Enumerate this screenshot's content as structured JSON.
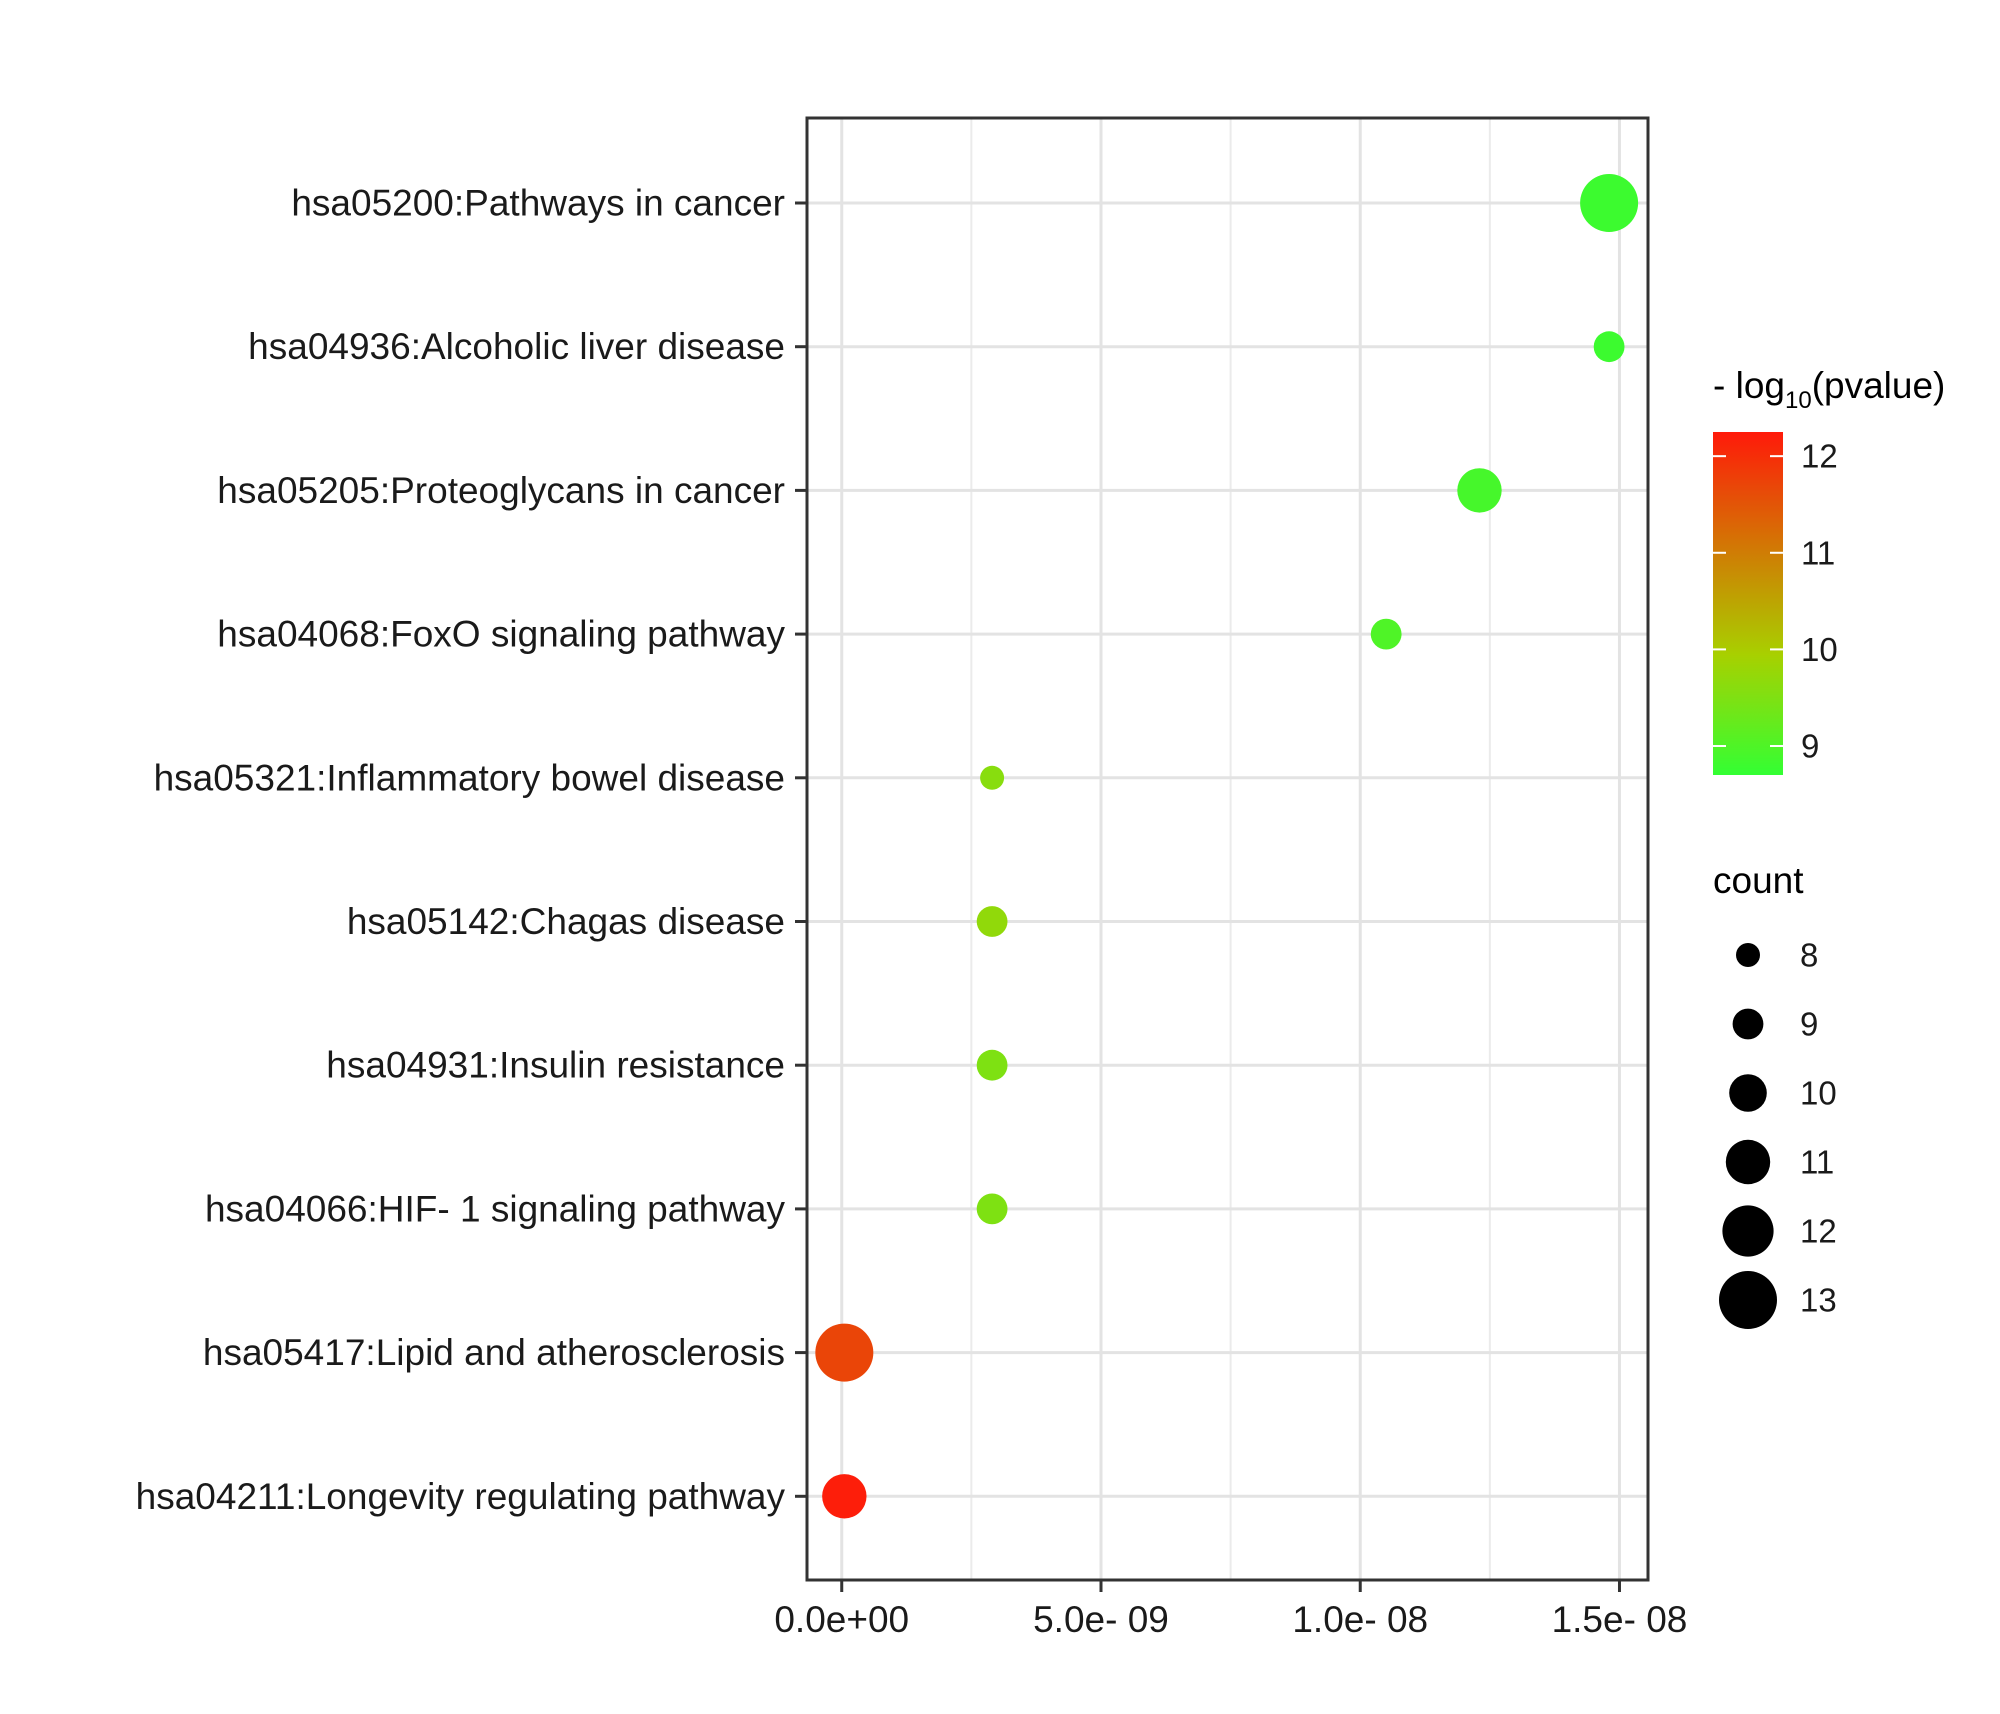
{
  "chart_data": {
    "type": "scatter",
    "title": "",
    "xlabel": "",
    "ylabel": "",
    "xlim": [
      -6.7e-10,
      1.555e-08
    ],
    "x_ticks": [
      0,
      5e-09,
      1e-08,
      1.5e-08
    ],
    "x_tick_labels": [
      "0.0e+00",
      "5.0e- 09",
      "1.0e- 08",
      "1.5e- 08"
    ],
    "grid": true,
    "categories": [
      "hsa05200:Pathways in cancer",
      "hsa04936:Alcoholic liver disease",
      "hsa05205:Proteoglycans in cancer",
      "hsa04068:FoxO signaling pathway",
      "hsa05321:Inflammatory bowel disease",
      "hsa05142:Chagas disease",
      "hsa04931:Insulin resistance",
      "hsa04066:HIF- 1 signaling pathway",
      "hsa05417:Lipid and atherosclerosis",
      "hsa04211:Longevity regulating pathway"
    ],
    "points": [
      {
        "category": "hsa05200:Pathways in cancer",
        "x": 1.48e-08,
        "count": 13,
        "neg_log10_pvalue": 8.8
      },
      {
        "category": "hsa04936:Alcoholic liver disease",
        "x": 1.48e-08,
        "count": 9,
        "neg_log10_pvalue": 8.8
      },
      {
        "category": "hsa05205:Proteoglycans in cancer",
        "x": 1.23e-08,
        "count": 11,
        "neg_log10_pvalue": 8.9
      },
      {
        "category": "hsa04068:FoxO signaling pathway",
        "x": 1.05e-08,
        "count": 9,
        "neg_log10_pvalue": 9.0
      },
      {
        "category": "hsa05321:Inflammatory bowel disease",
        "x": 2.9e-09,
        "count": 8,
        "neg_log10_pvalue": 9.6
      },
      {
        "category": "hsa05142:Chagas disease",
        "x": 2.9e-09,
        "count": 9,
        "neg_log10_pvalue": 9.7
      },
      {
        "category": "hsa04931:Insulin resistance",
        "x": 2.9e-09,
        "count": 9,
        "neg_log10_pvalue": 9.5
      },
      {
        "category": "hsa04066:HIF- 1 signaling pathway",
        "x": 2.9e-09,
        "count": 9,
        "neg_log10_pvalue": 9.5
      },
      {
        "category": "hsa05417:Lipid and atherosclerosis",
        "x": 5e-11,
        "count": 13,
        "neg_log10_pvalue": 11.7
      },
      {
        "category": "hsa04211:Longevity regulating pathway",
        "x": 5e-11,
        "count": 11,
        "neg_log10_pvalue": 12.2
      }
    ],
    "color_legend": {
      "title_prefix": "- log",
      "title_subscript": "10",
      "title_suffix": "(pvalue)",
      "range": [
        8.7,
        12.25
      ],
      "ticks": [
        9,
        10,
        11,
        12
      ],
      "tick_labels": [
        "9",
        "10",
        "11",
        "12"
      ],
      "low_color": "#33ff33",
      "mid_color": "#a8d000",
      "high_color": "#ff1a0a"
    },
    "size_legend": {
      "title": "count",
      "values": [
        8,
        9,
        10,
        11,
        12,
        13
      ],
      "labels": [
        "8",
        "9",
        "10",
        "11",
        "12",
        "13"
      ]
    }
  }
}
